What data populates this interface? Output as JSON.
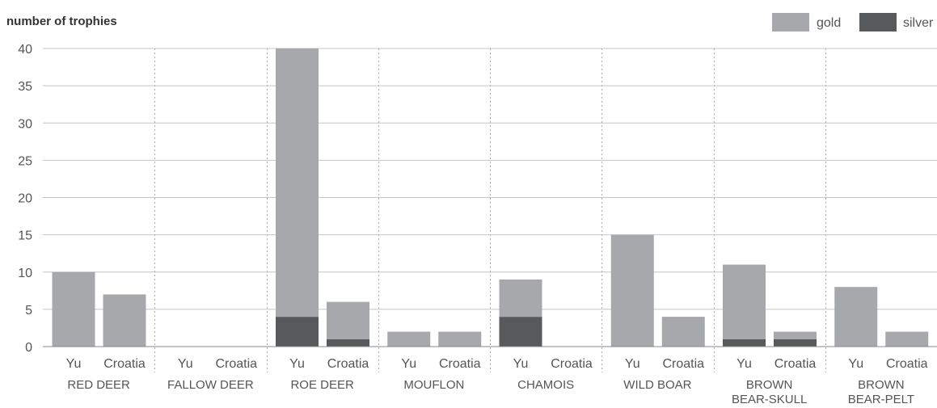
{
  "chart_data": {
    "type": "bar",
    "stacked": true,
    "ylabel": "number of trophies",
    "ylim": [
      0,
      40
    ],
    "yticks": [
      0,
      5,
      10,
      15,
      20,
      25,
      30,
      35,
      40
    ],
    "grid": true,
    "legend_placement": "top-right",
    "groups": [
      {
        "name": "RED DEER",
        "lines": [
          "RED DEER"
        ]
      },
      {
        "name": "FALLOW DEER",
        "lines": [
          "FALLOW DEER"
        ]
      },
      {
        "name": "ROE DEER",
        "lines": [
          "ROE DEER"
        ]
      },
      {
        "name": "MOUFLON",
        "lines": [
          "MOUFLON"
        ]
      },
      {
        "name": "CHAMOIS",
        "lines": [
          "CHAMOIS"
        ]
      },
      {
        "name": "WILD BOAR",
        "lines": [
          "WILD BOAR"
        ]
      },
      {
        "name": "BROWN BEAR-SKULL",
        "lines": [
          "BROWN",
          "BEAR-SKULL"
        ]
      },
      {
        "name": "BROWN BEAR-PELT",
        "lines": [
          "BROWN",
          "BEAR-PELT"
        ]
      }
    ],
    "subcategories": [
      "Yu",
      "Croatia"
    ],
    "series": [
      {
        "name": "gold",
        "color": "#a7a8ab",
        "values": [
          10,
          7,
          0,
          0,
          36,
          5,
          2,
          2,
          5,
          0,
          15,
          4,
          10,
          1,
          8,
          2
        ]
      },
      {
        "name": "silver",
        "color": "#58595b",
        "values": [
          0,
          0,
          0,
          0,
          4,
          1,
          0,
          0,
          4,
          0,
          0,
          0,
          1,
          1,
          0,
          0
        ]
      }
    ]
  }
}
